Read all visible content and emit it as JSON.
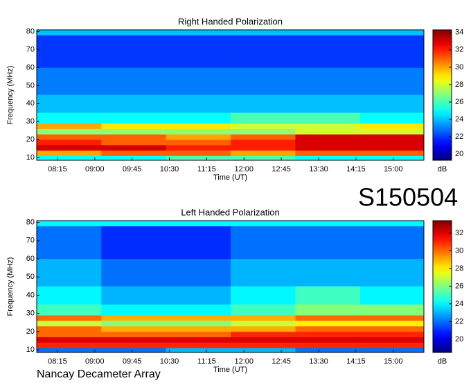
{
  "page_label": "S150504",
  "footer": "Nancay Decameter Array",
  "chart_data": [
    {
      "type": "heatmap",
      "title": "Right Handed Polarization",
      "x_label": "Time (UT)",
      "y_label": "Frequency (MHz)",
      "colorbar_label": "dB",
      "colormap": "jet",
      "x_bins": [
        470,
        548,
        626,
        704,
        782,
        860,
        937
      ],
      "y_bins": [
        8.5,
        11,
        14,
        17,
        20,
        23,
        26,
        29,
        35,
        45,
        60,
        78,
        81
      ],
      "values": [
        [
          25,
          25,
          26,
          26,
          25,
          25
        ],
        [
          30,
          31,
          31,
          30,
          31,
          31
        ],
        [
          33,
          33,
          32,
          32,
          33,
          33
        ],
        [
          32,
          31,
          31,
          32,
          33,
          33
        ],
        [
          31,
          31,
          30,
          31,
          33,
          33
        ],
        [
          27,
          27,
          27,
          27,
          28,
          28
        ],
        [
          30,
          29,
          29,
          28,
          28,
          29
        ],
        [
          25,
          25,
          25,
          26,
          26,
          25
        ],
        [
          24,
          24,
          24,
          24,
          24,
          24
        ],
        [
          23,
          23,
          23,
          23,
          23,
          23
        ],
        [
          22,
          22,
          22,
          22,
          22,
          22
        ],
        [
          24,
          24,
          24,
          24,
          24,
          24
        ]
      ],
      "xlim": [
        470,
        937
      ],
      "xticks": [
        {
          "value": 495,
          "label": "08:15"
        },
        {
          "value": 540,
          "label": "09:00"
        },
        {
          "value": 585,
          "label": "09:45"
        },
        {
          "value": 630,
          "label": "10:30"
        },
        {
          "value": 675,
          "label": "11:15"
        },
        {
          "value": 720,
          "label": "12:00"
        },
        {
          "value": 765,
          "label": "12:45"
        },
        {
          "value": 810,
          "label": "13:30"
        },
        {
          "value": 855,
          "label": "14:15"
        },
        {
          "value": 900,
          "label": "15:00"
        }
      ],
      "ylim": [
        8.5,
        81
      ],
      "yticks": [
        10,
        20,
        30,
        40,
        50,
        60,
        70,
        80
      ],
      "zlim": [
        19.3,
        34.3
      ],
      "zticks": [
        20,
        22,
        24,
        26,
        28,
        30,
        32,
        34
      ]
    },
    {
      "type": "heatmap",
      "title": "Left Handed Polarization",
      "x_label": "Time (UT)",
      "y_label": "Frequency (MHz)",
      "colorbar_label": "dB",
      "colormap": "jet",
      "x_bins": [
        470,
        548,
        626,
        704,
        782,
        860,
        937
      ],
      "y_bins": [
        8.5,
        11,
        14,
        17,
        20,
        23,
        26,
        29,
        35,
        45,
        60,
        78,
        81
      ],
      "values": [
        [
          22,
          22,
          23,
          23,
          22,
          22
        ],
        [
          31,
          31,
          31,
          31,
          31,
          31
        ],
        [
          32,
          32,
          32,
          32,
          32,
          32
        ],
        [
          30,
          30,
          30,
          31,
          31,
          31
        ],
        [
          30,
          29,
          29,
          29,
          30,
          30
        ],
        [
          27,
          26,
          26,
          27,
          28,
          28
        ],
        [
          30,
          29,
          29,
          29,
          30,
          30
        ],
        [
          25,
          24,
          24,
          25,
          26,
          26
        ],
        [
          24,
          23,
          23,
          24,
          25,
          24
        ],
        [
          23,
          22,
          22,
          23,
          23,
          23
        ],
        [
          22,
          21,
          21,
          22,
          22,
          22
        ],
        [
          24,
          24,
          24,
          24,
          24,
          24
        ]
      ],
      "xlim": [
        470,
        937
      ],
      "xticks": [
        {
          "value": 495,
          "label": "08:15"
        },
        {
          "value": 540,
          "label": "09:00"
        },
        {
          "value": 585,
          "label": "09:45"
        },
        {
          "value": 630,
          "label": "10:30"
        },
        {
          "value": 675,
          "label": "11:15"
        },
        {
          "value": 720,
          "label": "12:00"
        },
        {
          "value": 765,
          "label": "12:45"
        },
        {
          "value": 810,
          "label": "13:30"
        },
        {
          "value": 855,
          "label": "14:15"
        },
        {
          "value": 900,
          "label": "15:00"
        }
      ],
      "ylim": [
        8.5,
        81
      ],
      "yticks": [
        10,
        20,
        30,
        40,
        50,
        60,
        70,
        80
      ],
      "zlim": [
        18.5,
        33.4
      ],
      "zticks": [
        20,
        22,
        24,
        26,
        28,
        30,
        32
      ]
    }
  ]
}
